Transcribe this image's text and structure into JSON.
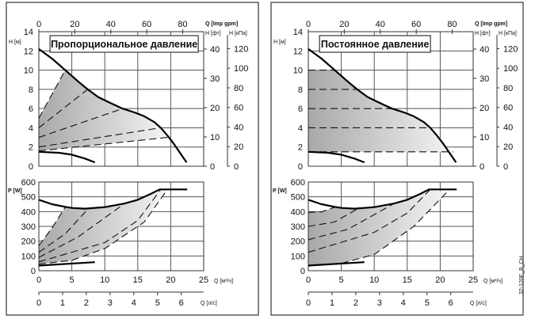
{
  "chart_data": [
    {
      "type": "line",
      "title": "Пропорциональное давление",
      "x_axes": {
        "q_m3h": {
          "label": "Q [м³/ч]",
          "ticks": [
            "0",
            "5",
            "10",
            "15",
            "20",
            "25"
          ],
          "range": [
            0,
            25
          ]
        },
        "q_ls": {
          "label": "Q [л/с]",
          "ticks": [
            "0",
            "1",
            "2",
            "3",
            "4",
            "5",
            "6"
          ]
        },
        "q_impgpm": {
          "label": "Q [Imp gpm]",
          "ticks": [
            "0",
            "20",
            "40",
            "60",
            "80"
          ]
        }
      },
      "head": {
        "ylabel": "H [м]",
        "ylim": [
          0,
          14
        ],
        "yticks": [
          "0",
          "2",
          "4",
          "6",
          "8",
          "10",
          "12",
          "14"
        ],
        "ft_label": "H [фт]",
        "ft_ticks": [
          "0",
          "10",
          "20",
          "30",
          "40"
        ],
        "kpa_label": "H [кПа]",
        "kpa_ticks": [
          "0",
          "20",
          "40",
          "60",
          "80",
          "100",
          "120"
        ],
        "max_curve": [
          [
            0,
            12.2
          ],
          [
            2,
            11.2
          ],
          [
            4,
            10
          ],
          [
            6,
            8.8
          ],
          [
            7.4,
            8
          ],
          [
            9,
            7.2
          ],
          [
            10.5,
            6.7
          ],
          [
            12.7,
            6
          ],
          [
            14.5,
            5.6
          ],
          [
            16,
            5.2
          ],
          [
            17.5,
            4.6
          ],
          [
            18.5,
            4
          ],
          [
            19.5,
            3.2
          ],
          [
            20.5,
            2.3
          ],
          [
            21.5,
            1.3
          ],
          [
            22.4,
            0.4
          ]
        ],
        "min_curve": [
          [
            0,
            1.5
          ],
          [
            3,
            1.4
          ],
          [
            5,
            1.2
          ],
          [
            7,
            0.8
          ],
          [
            8.5,
            0.4
          ]
        ],
        "control_curves": [
          [
            [
              0,
              5
            ],
            [
              4,
              10
            ]
          ],
          [
            [
              0,
              4
            ],
            [
              7.4,
              8
            ]
          ],
          [
            [
              0,
              3
            ],
            [
              12.7,
              6
            ]
          ],
          [
            [
              0,
              2
            ],
            [
              18.5,
              4
            ]
          ],
          [
            [
              0,
              1.6
            ],
            [
              19.5,
              3
            ]
          ]
        ]
      },
      "power": {
        "ylabel": "P [W]",
        "ylim": [
          0,
          600
        ],
        "yticks": [
          "0",
          "100",
          "200",
          "300",
          "400",
          "500",
          "600"
        ],
        "max_curve": [
          [
            0,
            480
          ],
          [
            2,
            450
          ],
          [
            4,
            432
          ],
          [
            5,
            425
          ],
          [
            7,
            420
          ],
          [
            10,
            430
          ],
          [
            13,
            455
          ],
          [
            15,
            480
          ],
          [
            17,
            520
          ],
          [
            18.3,
            550
          ],
          [
            22.5,
            550
          ]
        ],
        "min_curve": [
          [
            0,
            35
          ],
          [
            8.5,
            58
          ]
        ],
        "control_curves": [
          [
            [
              0,
              170
            ],
            [
              2,
              290
            ],
            [
              4,
              430
            ]
          ],
          [
            [
              0,
              125
            ],
            [
              4,
              250
            ],
            [
              7.5,
              420
            ]
          ],
          [
            [
              0,
              90
            ],
            [
              6,
              230
            ],
            [
              13,
              455
            ]
          ],
          [
            [
              0,
              60
            ],
            [
              10,
              190
            ],
            [
              15,
              340
            ],
            [
              18.5,
              550
            ]
          ],
          [
            [
              0,
              45
            ],
            [
              5,
              70
            ],
            [
              10,
              150
            ],
            [
              16,
              330
            ],
            [
              19.5,
              550
            ]
          ]
        ]
      }
    },
    {
      "type": "line",
      "title": "Постоянное давление",
      "x_axes": {
        "q_m3h": {
          "label": "Q [м³/ч]",
          "ticks": [
            "0",
            "5",
            "10",
            "15",
            "20",
            "25"
          ],
          "range": [
            0,
            25
          ]
        },
        "q_ls": {
          "label": "Q [л/с]",
          "ticks": [
            "0",
            "1",
            "2",
            "3",
            "4",
            "5",
            "6"
          ]
        },
        "q_impgpm": {
          "label": "Q [Imp gpm]",
          "ticks": [
            "0",
            "20",
            "40",
            "60",
            "80"
          ]
        }
      },
      "head": {
        "ylabel": "H [м]",
        "ylim": [
          0,
          14
        ],
        "yticks": [
          "0",
          "2",
          "4",
          "6",
          "8",
          "10",
          "12",
          "14"
        ],
        "ft_label": "H [фт]",
        "ft_ticks": [
          "0",
          "10",
          "20",
          "30",
          "40"
        ],
        "kpa_label": "H [кПа]",
        "kpa_ticks": [
          "0",
          "20",
          "40",
          "60",
          "80",
          "100",
          "120"
        ],
        "max_curve": [
          [
            0,
            12.2
          ],
          [
            2,
            11.2
          ],
          [
            4,
            10
          ],
          [
            6,
            8.8
          ],
          [
            7.4,
            8
          ],
          [
            9,
            7.2
          ],
          [
            10.5,
            6.7
          ],
          [
            12.7,
            6
          ],
          [
            14.5,
            5.6
          ],
          [
            16,
            5.2
          ],
          [
            17.5,
            4.6
          ],
          [
            18.5,
            4
          ],
          [
            19.5,
            3.2
          ],
          [
            20.5,
            2.3
          ],
          [
            21.5,
            1.3
          ],
          [
            22.4,
            0.4
          ]
        ],
        "min_curve": [
          [
            0,
            1.5
          ],
          [
            3,
            1.4
          ],
          [
            5,
            1.2
          ],
          [
            7,
            0.8
          ],
          [
            8.5,
            0.4
          ]
        ],
        "control_curves": [
          [
            [
              0,
              10
            ],
            [
              4,
              10
            ]
          ],
          [
            [
              0,
              8
            ],
            [
              7.4,
              8
            ]
          ],
          [
            [
              0,
              6
            ],
            [
              12.7,
              6
            ]
          ],
          [
            [
              0,
              4
            ],
            [
              18.5,
              4
            ]
          ],
          [
            [
              0,
              1.5
            ],
            [
              22,
              1.5
            ]
          ]
        ]
      },
      "power": {
        "ylabel": "P [W]",
        "ylim": [
          0,
          600
        ],
        "yticks": [
          "0",
          "100",
          "200",
          "300",
          "400",
          "500",
          "600"
        ],
        "max_curve": [
          [
            0,
            480
          ],
          [
            2,
            450
          ],
          [
            4,
            432
          ],
          [
            5,
            425
          ],
          [
            7,
            420
          ],
          [
            10,
            430
          ],
          [
            13,
            455
          ],
          [
            15,
            480
          ],
          [
            17,
            520
          ],
          [
            18.3,
            550
          ],
          [
            22.5,
            550
          ]
        ],
        "min_curve": [
          [
            0,
            35
          ],
          [
            8.5,
            58
          ]
        ],
        "control_curves": [
          [
            [
              0,
              395
            ],
            [
              2,
              398
            ],
            [
              4,
              430
            ]
          ],
          [
            [
              0,
              300
            ],
            [
              4,
              330
            ],
            [
              7.5,
              420
            ]
          ],
          [
            [
              0,
              210
            ],
            [
              6,
              280
            ],
            [
              13,
              455
            ]
          ],
          [
            [
              0,
              125
            ],
            [
              10,
              260
            ],
            [
              15,
              390
            ],
            [
              18.5,
              550
            ]
          ],
          [
            [
              0,
              35
            ],
            [
              5,
              50
            ],
            [
              10,
              110
            ],
            [
              16,
              300
            ],
            [
              21,
              530
            ]
          ]
        ]
      }
    }
  ],
  "figure_code": "32-120F_B_CH"
}
